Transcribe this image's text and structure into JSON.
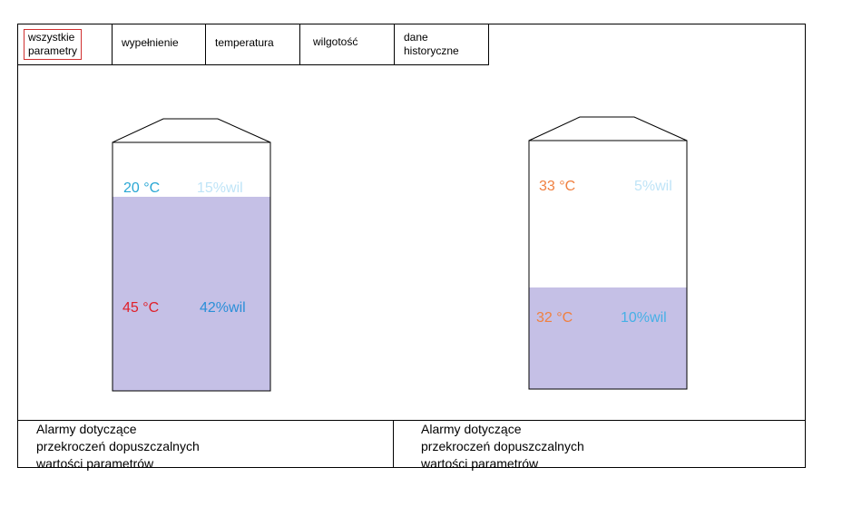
{
  "tabs": [
    {
      "lines": [
        "wszystkie",
        "parametry"
      ],
      "selected": true
    },
    {
      "lines": [
        "wypełnienie"
      ],
      "selected": false
    },
    {
      "lines": [
        "temperatura"
      ],
      "selected": false
    },
    {
      "lines": [
        "wilgotość"
      ],
      "selected": false
    },
    {
      "lines": [
        "dane",
        "historyczne"
      ],
      "selected": false
    }
  ],
  "tanks": [
    {
      "fill_fraction": 0.78,
      "top": {
        "temperature": "20 °C",
        "humidity": "15%wil"
      },
      "bottom": {
        "temperature": "45 °C",
        "humidity": "42%wil"
      }
    },
    {
      "fill_fraction": 0.41,
      "top": {
        "temperature": "33 °C",
        "humidity": "5%wil"
      },
      "bottom": {
        "temperature": "32 °C",
        "humidity": "10%wil"
      }
    }
  ],
  "alarms": [
    {
      "lines": [
        "Alarmy dotyczące",
        "przekroczeń dopuszczalnych",
        "wartości parametrów"
      ]
    },
    {
      "lines": [
        "Alarmy dotyczące",
        "przekroczeń dopuszczalnych",
        "wartości parametrów"
      ]
    }
  ],
  "colors": {
    "fill": "#c5c0e6",
    "temp_cool": "#2aa7d4",
    "humid_light": "#bfe4f7",
    "temp_hot": "#e0202a",
    "humid_dark": "#2a8fd8",
    "temp_warm": "#f08040",
    "humid_mid": "#46b0e6",
    "tab_selected_border": "#d03030"
  }
}
